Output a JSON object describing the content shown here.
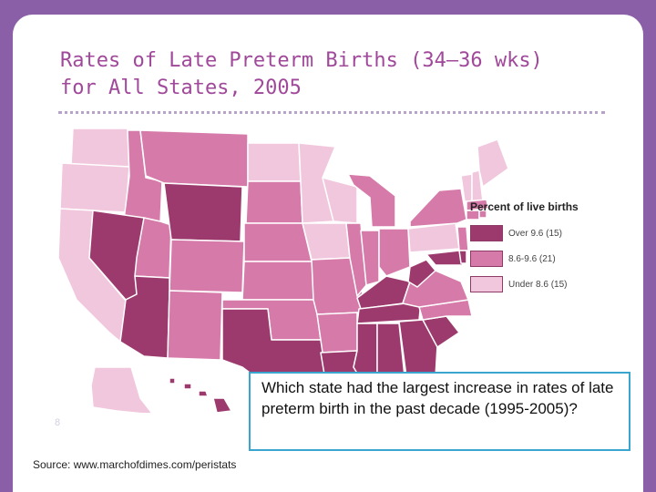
{
  "title_line1": "Rates of Late Preterm Births (34–36 wks)",
  "title_line2": "for All States, 2005",
  "legend": {
    "title": "Percent of live births",
    "items": [
      {
        "label": "Over 9.6 (15)",
        "color": "#9c3a6e"
      },
      {
        "label": "8.6-9.6 (21)",
        "color": "#d67aaa"
      },
      {
        "label": "Under 8.6 (15)",
        "color": "#f1c7dd"
      }
    ]
  },
  "question": "Which state had the largest increase in rates of late preterm birth in the past decade (1995-2005)?",
  "source": "Source: www.marchofdimes.com/peristats",
  "slide_number": "8",
  "colors": {
    "background": "#8a5fa8",
    "title": "#a0489a",
    "dots": "#b7a3c8",
    "border": "#ffffff",
    "question_border": "#3aa6cf"
  }
}
